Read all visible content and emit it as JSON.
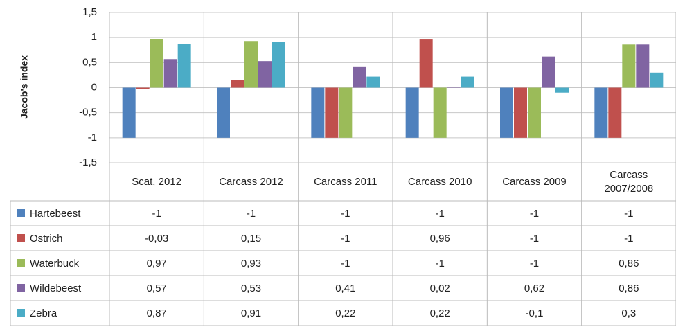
{
  "chart_data": {
    "type": "bar",
    "y_label": "Jacob's index",
    "categories": [
      "Scat, 2012",
      "Carcass 2012",
      "Carcass 2011",
      "Carcass 2010",
      "Carcass 2009",
      "Carcass 2007/2008"
    ],
    "series": [
      {
        "name": "Hartebeest",
        "color": "#4f81bd",
        "values": [
          -1,
          -1,
          -1,
          -1,
          -1,
          -1
        ],
        "value_labels": [
          "-1",
          "-1",
          "-1",
          "-1",
          "-1",
          "-1"
        ]
      },
      {
        "name": "Ostrich",
        "color": "#c0504d",
        "values": [
          -0.03,
          0.15,
          -1,
          0.96,
          -1,
          -1
        ],
        "value_labels": [
          "-0,03",
          "0,15",
          "-1",
          "0,96",
          "-1",
          "-1"
        ]
      },
      {
        "name": "Waterbuck",
        "color": "#9bbb59",
        "values": [
          0.97,
          0.93,
          -1,
          -1,
          -1,
          0.86
        ],
        "value_labels": [
          "0,97",
          "0,93",
          "-1",
          "-1",
          "-1",
          "0,86"
        ]
      },
      {
        "name": "Wildebeest",
        "color": "#8064a2",
        "values": [
          0.57,
          0.53,
          0.41,
          0.02,
          0.62,
          0.86
        ],
        "value_labels": [
          "0,57",
          "0,53",
          "0,41",
          "0,02",
          "0,62",
          "0,86"
        ]
      },
      {
        "name": "Zebra",
        "color": "#4bacc6",
        "values": [
          0.87,
          0.91,
          0.22,
          0.22,
          -0.1,
          0.3
        ],
        "value_labels": [
          "0,87",
          "0,91",
          "0,22",
          "0,22",
          "-0,1",
          "0,3"
        ]
      }
    ],
    "ylim": [
      -1.5,
      1.5
    ],
    "yticks": [
      {
        "value": 1.5,
        "label": "1,5"
      },
      1,
      {
        "value": 0.5,
        "label": "0,5"
      },
      0,
      {
        "value": -0.5,
        "label": "-0,5"
      },
      -1,
      {
        "value": -1.5,
        "label": "-1,5"
      }
    ],
    "grid": true
  }
}
